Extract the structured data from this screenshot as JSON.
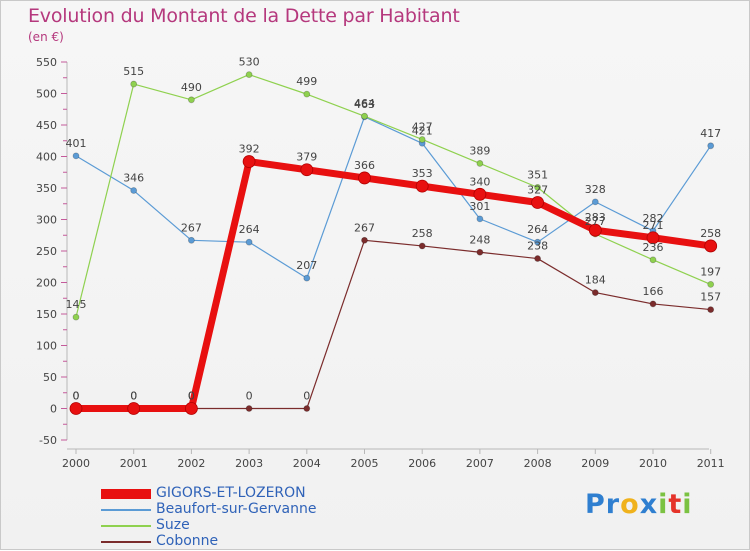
{
  "header": {
    "title": "Evolution du Montant de la Dette par Habitant",
    "subtitle": "(en €)"
  },
  "chart_data": {
    "type": "line",
    "title": "Evolution du Montant de la Dette par Habitant",
    "ylabel": "(en €)",
    "xlabel": "",
    "categories": [
      "2000",
      "2001",
      "2002",
      "2003",
      "2004",
      "2005",
      "2006",
      "2007",
      "2008",
      "2009",
      "2010",
      "2011"
    ],
    "ylim": [
      -50,
      550
    ],
    "yticks": [
      "550",
      "500",
      "450",
      "400",
      "350",
      "300",
      "250",
      "200",
      "150",
      "100",
      "50",
      "0",
      "-50"
    ],
    "yticks_values": [
      550,
      500,
      450,
      400,
      350,
      300,
      250,
      200,
      150,
      100,
      50,
      0,
      -50
    ],
    "grid": false,
    "legend_position": "bottom-left",
    "series": [
      {
        "name": "Beaufort-sur-Gervanne",
        "color": "#5b9bd5",
        "values": [
          401,
          346,
          267,
          264,
          207,
          463,
          421,
          301,
          264,
          328,
          282,
          417
        ],
        "labels": [
          "401",
          "346",
          "267",
          "264",
          "207",
          "463",
          "421",
          "301",
          "264",
          "328",
          "282",
          "417"
        ]
      },
      {
        "name": "Suze",
        "color": "#8fd14f",
        "values": [
          145,
          515,
          490,
          530,
          499,
          464,
          427,
          389,
          351,
          277,
          236,
          197
        ],
        "labels": [
          "145",
          "515",
          "490",
          "530",
          "499",
          "464",
          "427",
          "389",
          "351",
          "277",
          "236",
          "197"
        ]
      },
      {
        "name": "Cobonne",
        "color": "#7b2c2c",
        "values": [
          0,
          0,
          0,
          0,
          0,
          267,
          258,
          248,
          238,
          184,
          166,
          157
        ],
        "labels": [
          "0",
          "0",
          "0",
          "0",
          "0",
          "267",
          "258",
          "248",
          "238",
          "184",
          "166",
          "157"
        ]
      },
      {
        "name": "GIGORS-ET-LOZERON",
        "color": "#e81010",
        "values": [
          0,
          0,
          0,
          392,
          379,
          366,
          353,
          340,
          327,
          283,
          271,
          258
        ],
        "labels": [
          "0",
          "0",
          "0",
          "392",
          "379",
          "366",
          "353",
          "340",
          "327",
          "283",
          "271",
          "258"
        ]
      }
    ]
  },
  "legend": {
    "items": [
      {
        "label": "GIGORS-ET-LOZERON",
        "color": "#e81010"
      },
      {
        "label": "Beaufort-sur-Gervanne",
        "color": "#5b9bd5"
      },
      {
        "label": "Suze",
        "color": "#8fd14f"
      },
      {
        "label": "Cobonne",
        "color": "#7b2c2c"
      }
    ]
  },
  "logo": {
    "letters": [
      "P",
      "r",
      "o",
      "x",
      "i",
      "t",
      "i"
    ],
    "colors": [
      "#2f7fd0",
      "#2f7fd0",
      "#f0b21c",
      "#2f7fd0",
      "#7bc242",
      "#e5332a",
      "#7bc242"
    ]
  }
}
